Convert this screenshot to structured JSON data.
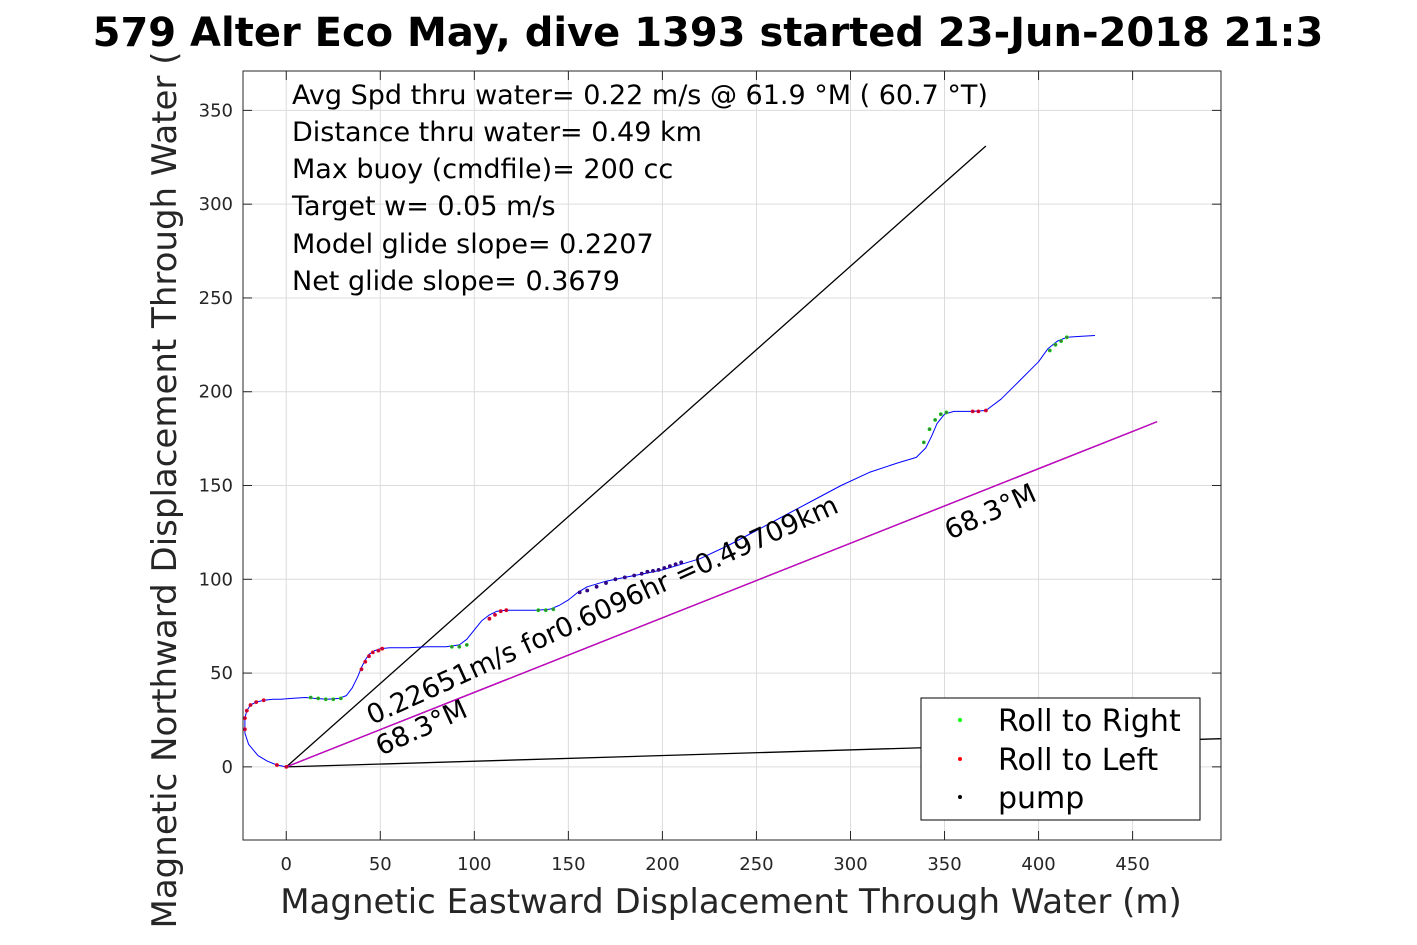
{
  "title": "579 Alter Eco May, dive 1393 started 23-Jun-2018 21:3",
  "chart_data": {
    "type": "line",
    "xlabel": "Magnetic Eastward Displacement Through Water (m)",
    "ylabel": "Magnetic Northward Displacement Through Water (",
    "xlim": [
      -23,
      497
    ],
    "ylim": [
      -39,
      371
    ],
    "xticks": [
      0,
      50,
      100,
      150,
      200,
      250,
      300,
      350,
      400,
      450
    ],
    "yticks": [
      0,
      50,
      100,
      150,
      200,
      250,
      300,
      350
    ],
    "grid": true,
    "legend_position": "bottom-right",
    "annotations": [
      "Avg Spd thru water=  0.22 m/s @  61.9 °M ( 60.7 °T)",
      "Distance thru water=  0.49 km",
      "Max buoy (cmdfile)= 200 cc",
      "Target w= 0.05 m/s",
      "Model glide slope= 0.2207",
      "Net glide slope= 0.3679"
    ],
    "rotated_labels": {
      "speed_label": "0.22651m/s for0.6096hr =0.49709km",
      "heading_near": "68.3°M",
      "heading_far": "68.3°M"
    },
    "reference_lines": [
      {
        "name": "",
        "color": "#000000",
        "x": [
          0,
          372
        ],
        "y": [
          0,
          331
        ]
      },
      {
        "name": "",
        "color": "#000000",
        "x": [
          0,
          497
        ],
        "y": [
          0,
          15
        ]
      },
      {
        "name": "",
        "color": "#000000",
        "x": [
          0,
          463
        ],
        "y": [
          0,
          184
        ]
      },
      {
        "name": "",
        "color": "#cc00cc",
        "x": [
          0,
          463
        ],
        "y": [
          0,
          184
        ]
      }
    ],
    "track": {
      "color": "#0000ff",
      "x": [
        0,
        -5,
        -10,
        -15,
        -20,
        -22,
        -22,
        -21,
        -19,
        -16,
        -12,
        -7,
        -3,
        3,
        10,
        15,
        22,
        28,
        32,
        35,
        38,
        40,
        42,
        44,
        47,
        50,
        55,
        65,
        75,
        85,
        92,
        96,
        100,
        104,
        108,
        112,
        117,
        125,
        133,
        140,
        145,
        150,
        155,
        160,
        170,
        180,
        190,
        200,
        210,
        220,
        235,
        250,
        265,
        280,
        295,
        310,
        325,
        335,
        340,
        343,
        346,
        350,
        355,
        365,
        372,
        380,
        390,
        400,
        405,
        410,
        415,
        422,
        430
      ],
      "y": [
        0,
        1,
        3,
        6,
        12,
        18,
        26,
        30,
        33,
        34.5,
        35.5,
        36,
        36,
        36.5,
        37,
        36.5,
        36,
        36.5,
        38,
        42,
        48,
        53,
        57,
        60,
        62,
        63,
        63.5,
        63.5,
        64,
        64,
        65,
        68,
        73,
        78,
        81,
        83,
        83.5,
        83.5,
        83.5,
        84,
        86,
        89,
        93,
        96,
        99,
        101,
        103,
        105,
        108,
        111,
        118,
        126,
        134,
        142,
        150,
        157,
        162,
        165,
        170,
        176,
        183,
        188,
        189.5,
        189.5,
        190,
        196,
        206,
        216,
        223,
        227,
        229,
        229.5,
        230
      ]
    },
    "series": [
      {
        "name": "Roll to Right",
        "color": "#00ff00",
        "x": [
          13,
          17,
          21,
          25,
          29,
          88,
          92,
          96,
          134,
          138,
          142,
          339,
          342,
          345,
          348,
          351,
          406,
          409,
          412,
          415
        ],
        "y": [
          37,
          36.5,
          36,
          36,
          36.5,
          64,
          64,
          65,
          83.5,
          83.5,
          84,
          173,
          180,
          185,
          188,
          189,
          222,
          225,
          227,
          229
        ]
      },
      {
        "name": "Roll to Left",
        "color": "#ff0000",
        "x": [
          -22,
          -22,
          -21,
          -19,
          -16,
          -12,
          -5,
          0,
          40,
          42,
          44,
          46,
          49,
          51,
          108,
          111,
          114,
          117,
          365,
          368,
          372
        ],
        "y": [
          20,
          26,
          30,
          33,
          34.5,
          35.5,
          1,
          0,
          52,
          56,
          59,
          61,
          62,
          63,
          79,
          81,
          83,
          83.5,
          189.5,
          189.5,
          190
        ]
      },
      {
        "name": "pump",
        "color": "#000080",
        "x": [
          156,
          160,
          165,
          170,
          175,
          180,
          185,
          189,
          192,
          195,
          198,
          201,
          204,
          207,
          210
        ],
        "y": [
          93,
          94,
          96,
          98,
          100,
          101,
          102,
          103,
          104,
          104.5,
          105,
          106,
          107,
          108,
          109
        ]
      }
    ]
  }
}
